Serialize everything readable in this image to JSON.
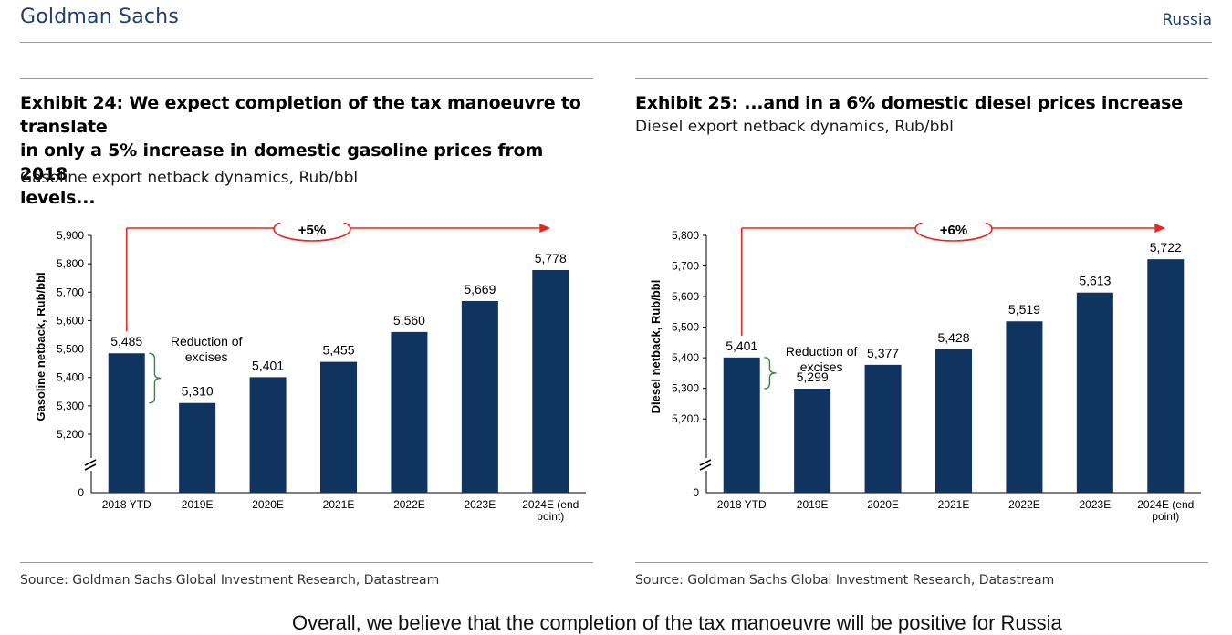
{
  "header": {
    "brand": "Goldman Sachs",
    "region": "Russia"
  },
  "panels": [
    {
      "title_lines": [
        "Exhibit 24: We expect completion of the tax manoeuvre to translate",
        "in only a 5% increase in domestic gasoline prices from 2018",
        "levels..."
      ],
      "subtitle": "Gasoline export netback dynamics, Rub/bbl",
      "source": "Source: Goldman Sachs Global Investment Research, Datastream"
    },
    {
      "title_lines": [
        "Exhibit 25: ...and in a 6% domestic diesel prices increase"
      ],
      "subtitle": "Diesel export netback dynamics, Rub/bbl",
      "source": "Source: Goldman Sachs Global Investment Research, Datastream"
    }
  ],
  "chart_data": [
    {
      "type": "bar",
      "title": "Exhibit 24: We expect completion of the tax manoeuvre to translate in only a 5% increase in domestic gasoline prices from 2018 levels...",
      "subtitle": "Gasoline export netback dynamics, Rub/bbl",
      "ylabel": "Gasoline netback, Rub/bbl",
      "categories": [
        "2018 YTD",
        "2019E",
        "2020E",
        "2021E",
        "2022E",
        "2023E",
        "2024E (end point)"
      ],
      "category_lines": [
        [
          "2018 YTD"
        ],
        [
          "2019E"
        ],
        [
          "2020E"
        ],
        [
          "2021E"
        ],
        [
          "2022E"
        ],
        [
          "2023E"
        ],
        [
          "2024E (end",
          "point)"
        ]
      ],
      "values": [
        5485,
        5310,
        5401,
        5455,
        5560,
        5669,
        5778
      ],
      "labels": [
        "5,485",
        "5,310",
        "5,401",
        "5,455",
        "5,560",
        "5,669",
        "5,778"
      ],
      "ylim": [
        5200,
        5900
      ],
      "yticks": [
        5200,
        5300,
        5400,
        5500,
        5600,
        5700,
        5800,
        5900
      ],
      "ytick_labels": [
        "5,200",
        "5,300",
        "5,400",
        "5,500",
        "5,600",
        "5,700",
        "5,800",
        "5,900"
      ],
      "zero_label": "0",
      "axis_break": true,
      "bar_color": "#0f3460",
      "annotations": {
        "change_label": "+5%",
        "excise_note": [
          "Reduction of",
          "excises"
        ],
        "arrow_color": "#e8251f",
        "bracket_color": "#2e8b3e"
      },
      "grid": false
    },
    {
      "type": "bar",
      "title": "Exhibit 25: ...and in a 6% domestic diesel prices increase",
      "subtitle": "Diesel export netback dynamics, Rub/bbl",
      "ylabel": "Diesel netback, Rub/bbl",
      "categories": [
        "2018 YTD",
        "2019E",
        "2020E",
        "2021E",
        "2022E",
        "2023E",
        "2024E (end point)"
      ],
      "category_lines": [
        [
          "2018 YTD"
        ],
        [
          "2019E"
        ],
        [
          "2020E"
        ],
        [
          "2021E"
        ],
        [
          "2022E"
        ],
        [
          "2023E"
        ],
        [
          "2024E (end",
          "point)"
        ]
      ],
      "values": [
        5401,
        5299,
        5377,
        5428,
        5519,
        5613,
        5722
      ],
      "labels": [
        "5,401",
        "5,299",
        "5,377",
        "5,428",
        "5,519",
        "5,613",
        "5,722"
      ],
      "ylim": [
        5150,
        5800
      ],
      "yticks": [
        5200,
        5300,
        5400,
        5500,
        5600,
        5700,
        5800
      ],
      "ytick_labels": [
        "5,200",
        "5,300",
        "5,400",
        "5,500",
        "5,600",
        "5,700",
        "5,800"
      ],
      "zero_label": "0",
      "axis_break": true,
      "bar_color": "#0f3460",
      "annotations": {
        "change_label": "+6%",
        "excise_note": [
          "Reduction of",
          "excises"
        ],
        "arrow_color": "#e8251f",
        "bracket_color": "#2e8b3e"
      },
      "grid": false
    }
  ],
  "body_text": "Overall, we believe that the completion of the tax manoeuvre will be positive for Russia"
}
